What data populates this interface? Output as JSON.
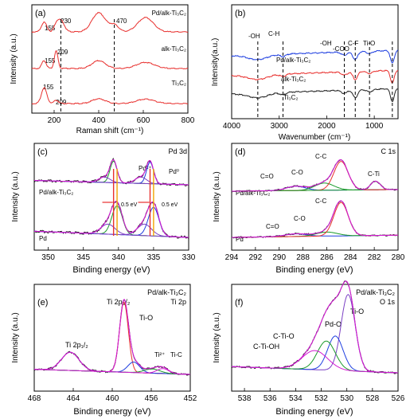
{
  "colors": {
    "red": "#e8302e",
    "black": "#222222",
    "blue": "#1f3fe0",
    "magenta": "#d21bd2",
    "green": "#1a9a2a",
    "purple": "#7a3fc4",
    "orange": "#f2a400",
    "bg": "#ffffff"
  },
  "chart_data": [
    {
      "id": "a",
      "panel_label": "(a)",
      "type": "line",
      "xlabel": "Raman shift (cm⁻¹)",
      "ylabel": "Intensity (a.u.)",
      "xlim": [
        100,
        800
      ],
      "xticks": [
        200,
        400,
        600,
        800
      ],
      "grid": false,
      "series": [
        {
          "name": "Pd/alk-Ti₃C₂",
          "color": "#e8302e",
          "peaks": [
            [
              155,
              0.5,
              12
            ],
            [
              209,
              0.3,
              10
            ],
            [
              230,
              0.6,
              15
            ],
            [
              400,
              1.0,
              30
            ],
            [
              470,
              0.35,
              20
            ],
            [
              610,
              0.75,
              35
            ]
          ]
        },
        {
          "name": "alk-Ti₃C₂",
          "color": "#e8302e",
          "peaks": [
            [
              155,
              0.45,
              10
            ],
            [
              209,
              1.0,
              8
            ],
            [
              400,
              0.45,
              30
            ],
            [
              610,
              0.35,
              40
            ]
          ]
        },
        {
          "name": "Ti₃C₂",
          "color": "#e8302e",
          "peaks": [
            [
              155,
              1.0,
              12
            ],
            [
              209,
              0.2,
              10
            ],
            [
              400,
              0.3,
              30
            ],
            [
              610,
              0.28,
              40
            ]
          ]
        }
      ],
      "annotations": [
        "155",
        "230",
        "470",
        "155",
        "209",
        "155",
        "209"
      ],
      "reference_lines": [
        230,
        470
      ]
    },
    {
      "id": "b",
      "panel_label": "(b)",
      "type": "line",
      "xlabel": "Wavenumber (cm⁻¹)",
      "ylabel": "Intensity(a.u.)",
      "xlim": [
        4000,
        500
      ],
      "xticks": [
        4000,
        3000,
        2000,
        1000
      ],
      "grid": false,
      "series": [
        {
          "name": "Pd/alk-Ti₃C₂",
          "color": "#1f3fe0"
        },
        {
          "name": "alk-Ti₃C₂",
          "color": "#e8302e"
        },
        {
          "name": "Ti₃C₂",
          "color": "#222222"
        }
      ],
      "annotations": [
        "-OH",
        "C-H",
        "-OH",
        "-COO",
        "C-F",
        "Ti-O"
      ],
      "reference_lines": [
        3450,
        2920,
        1630,
        1400,
        1100,
        620
      ]
    },
    {
      "id": "c",
      "panel_label": "(c)",
      "title": "Pd 3d",
      "type": "line",
      "xlabel": "Binding energy (eV)",
      "ylabel": "Intensity (a.u.)",
      "xlim": [
        352,
        330
      ],
      "xticks": [
        350,
        345,
        340,
        335,
        330
      ],
      "grid": false,
      "samples": [
        "Pd/alk-Ti₃C₂",
        "Pd"
      ],
      "peak_labels": [
        "Pd²⁺",
        "Pd⁰"
      ],
      "shift_labels": [
        "0.5 eV",
        "0.5 eV"
      ],
      "peaks_top": [
        [
          340.7,
          1.0,
          0.5
        ],
        [
          335.5,
          1.0,
          0.5
        ],
        [
          342.0,
          0.25,
          0.8
        ],
        [
          336.8,
          0.3,
          0.8
        ]
      ],
      "peaks_bottom": [
        [
          340.2,
          1.0,
          0.75
        ],
        [
          335.0,
          1.0,
          0.75
        ],
        [
          341.5,
          0.35,
          1.0
        ],
        [
          336.3,
          0.4,
          1.0
        ]
      ]
    },
    {
      "id": "d",
      "panel_label": "(d)",
      "title": "C 1s",
      "type": "line",
      "xlabel": "Binding energy (eV)",
      "ylabel": "Intensity (a.u.)",
      "xlim": [
        294,
        280
      ],
      "xticks": [
        294,
        292,
        290,
        288,
        286,
        284,
        282,
        280
      ],
      "grid": false,
      "samples": [
        "Pd/alk-Ti₃C₂",
        "Pd"
      ],
      "peak_labels_top": [
        "C=O",
        "C-O",
        "C-C",
        "C-Ti"
      ],
      "peak_labels_bottom": [
        "C=O",
        "C-O",
        "C-C"
      ],
      "peaks_top": [
        [
          288.6,
          0.15,
          0.8
        ],
        [
          286.2,
          0.25,
          0.8
        ],
        [
          284.8,
          1.0,
          0.6
        ],
        [
          281.9,
          0.3,
          0.4
        ]
      ],
      "peaks_bottom": [
        [
          288.6,
          0.08,
          0.9
        ],
        [
          286.0,
          0.12,
          0.9
        ],
        [
          284.8,
          1.0,
          0.6
        ]
      ]
    },
    {
      "id": "e",
      "panel_label": "(e)",
      "title": "Pd/alk-Ti₃C₂",
      "subtitle": "Ti 2p",
      "type": "line",
      "xlabel": "Binding energy (eV)",
      "ylabel": "Intensity (a.u.)",
      "xlim": [
        468,
        452
      ],
      "xticks": [
        468,
        464,
        460,
        456,
        452
      ],
      "grid": false,
      "peak_labels": [
        "Ti 2p₁/₂",
        "Ti 2p₃/₂",
        "Ti-O",
        "Ti²⁺",
        "Ti-C"
      ],
      "peaks": [
        [
          464.3,
          0.26,
          0.9
        ],
        [
          458.8,
          1.0,
          0.45
        ],
        [
          457.8,
          0.15,
          0.6
        ],
        [
          455.9,
          0.06,
          0.8
        ],
        [
          454.8,
          0.07,
          0.6
        ]
      ]
    },
    {
      "id": "f",
      "panel_label": "(f)",
      "title": "Pd/alk-Ti₃C₂",
      "subtitle": "O 1s",
      "type": "line",
      "xlabel": "Binding energy (eV)",
      "ylabel": "Intensity (a.u.)",
      "xlim": [
        539,
        526
      ],
      "xticks": [
        538,
        536,
        534,
        532,
        530,
        528,
        526
      ],
      "grid": false,
      "peak_labels": [
        "Ti-O",
        "Pd-O",
        "C-Ti-O",
        "C-Ti-OH"
      ],
      "peaks": [
        [
          529.9,
          1.0,
          0.55
        ],
        [
          530.9,
          0.45,
          0.6
        ],
        [
          531.6,
          0.38,
          0.7
        ],
        [
          532.5,
          0.25,
          1.0
        ]
      ]
    }
  ]
}
